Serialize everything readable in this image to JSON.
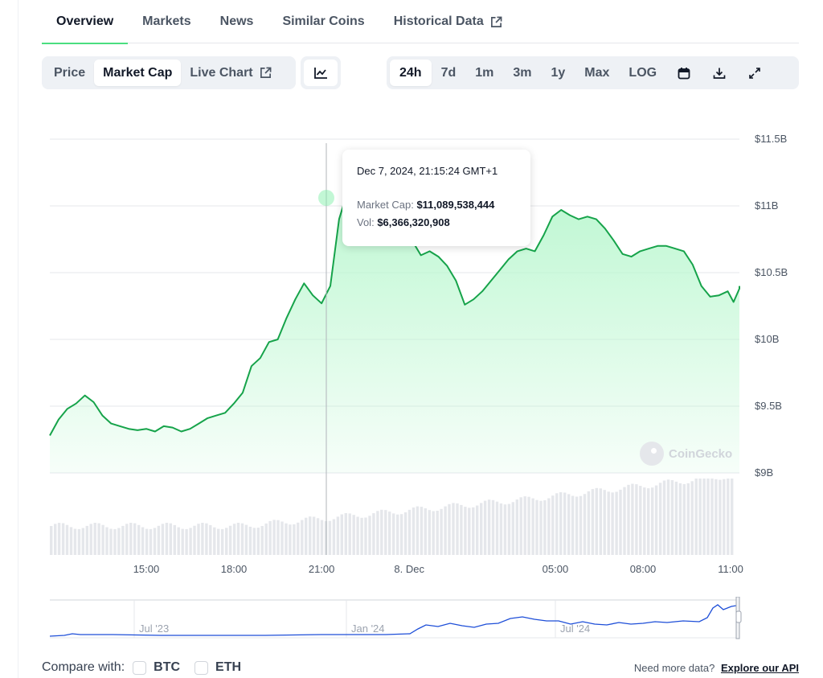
{
  "tabs": [
    {
      "label": "Overview",
      "active": true
    },
    {
      "label": "Markets",
      "active": false
    },
    {
      "label": "News",
      "active": false
    },
    {
      "label": "Similar Coins",
      "active": false
    },
    {
      "label": "Historical Data",
      "active": false
    }
  ],
  "chart_type_toggle": [
    {
      "label": "Price",
      "active": false
    },
    {
      "label": "Market Cap",
      "active": true
    },
    {
      "label": "Live Chart",
      "active": false
    }
  ],
  "chart_style_icon": "line-chart-icon",
  "ranges": [
    {
      "label": "24h",
      "active": true
    },
    {
      "label": "7d",
      "active": false
    },
    {
      "label": "1m",
      "active": false
    },
    {
      "label": "3m",
      "active": false
    },
    {
      "label": "1y",
      "active": false
    },
    {
      "label": "Max",
      "active": false
    },
    {
      "label": "LOG",
      "active": false
    }
  ],
  "tools": [
    "calendar-icon",
    "download-icon",
    "expand-icon"
  ],
  "chart_data": {
    "type": "area",
    "title": "",
    "y_ticks": [
      "$11.5B",
      "$11B",
      "$10.5B",
      "$10B",
      "$9.5B",
      "$9B"
    ],
    "y_tick_values": [
      11.5,
      11.0,
      10.5,
      10.0,
      9.5,
      9.0
    ],
    "x_ticks": [
      "15:00",
      "18:00",
      "21:00",
      "8. Dec",
      "05:00",
      "08:00",
      "11:00"
    ],
    "x_tick_hours": [
      15,
      18,
      21,
      24,
      29,
      32,
      35
    ],
    "x_range_hours": [
      11.7,
      35.3
    ],
    "ylim": [
      8.45,
      11.75
    ],
    "series": [
      {
        "values_billion_usd": [
          [
            11.7,
            9.28
          ],
          [
            12.0,
            9.4
          ],
          [
            12.3,
            9.48
          ],
          [
            12.6,
            9.52
          ],
          [
            12.9,
            9.58
          ],
          [
            13.2,
            9.53
          ],
          [
            13.5,
            9.43
          ],
          [
            13.8,
            9.37
          ],
          [
            14.1,
            9.35
          ],
          [
            14.4,
            9.33
          ],
          [
            14.7,
            9.32
          ],
          [
            15.0,
            9.33
          ],
          [
            15.3,
            9.31
          ],
          [
            15.6,
            9.35
          ],
          [
            15.9,
            9.34
          ],
          [
            16.2,
            9.31
          ],
          [
            16.5,
            9.33
          ],
          [
            16.8,
            9.37
          ],
          [
            17.1,
            9.41
          ],
          [
            17.4,
            9.43
          ],
          [
            17.7,
            9.45
          ],
          [
            18.0,
            9.52
          ],
          [
            18.3,
            9.6
          ],
          [
            18.6,
            9.8
          ],
          [
            18.9,
            9.86
          ],
          [
            19.2,
            9.98
          ],
          [
            19.5,
            10.0
          ],
          [
            19.8,
            10.16
          ],
          [
            20.1,
            10.3
          ],
          [
            20.4,
            10.42
          ],
          [
            20.7,
            10.33
          ],
          [
            21.0,
            10.27
          ],
          [
            21.3,
            10.4
          ],
          [
            21.6,
            10.9
          ],
          [
            21.85,
            11.08
          ],
          [
            22.1,
            11.02
          ],
          [
            22.35,
            10.88
          ],
          [
            22.6,
            10.87
          ],
          [
            22.9,
            10.86
          ],
          [
            23.2,
            10.84
          ],
          [
            23.5,
            10.85
          ],
          [
            23.8,
            10.82
          ],
          [
            24.1,
            10.74
          ],
          [
            24.4,
            10.63
          ],
          [
            24.7,
            10.66
          ],
          [
            25.0,
            10.62
          ],
          [
            25.3,
            10.55
          ],
          [
            25.6,
            10.44
          ],
          [
            25.9,
            10.26
          ],
          [
            26.2,
            10.3
          ],
          [
            26.5,
            10.36
          ],
          [
            26.8,
            10.44
          ],
          [
            27.1,
            10.52
          ],
          [
            27.4,
            10.6
          ],
          [
            27.7,
            10.66
          ],
          [
            28.0,
            10.68
          ],
          [
            28.3,
            10.66
          ],
          [
            28.6,
            10.78
          ],
          [
            28.9,
            10.92
          ],
          [
            29.2,
            10.97
          ],
          [
            29.5,
            10.93
          ],
          [
            29.8,
            10.9
          ],
          [
            30.1,
            10.92
          ],
          [
            30.4,
            10.9
          ],
          [
            30.7,
            10.83
          ],
          [
            31.0,
            10.74
          ],
          [
            31.3,
            10.64
          ],
          [
            31.6,
            10.62
          ],
          [
            31.9,
            10.66
          ],
          [
            32.2,
            10.68
          ],
          [
            32.5,
            10.7
          ],
          [
            32.8,
            10.7
          ],
          [
            33.1,
            10.68
          ],
          [
            33.4,
            10.66
          ],
          [
            33.7,
            10.56
          ],
          [
            34.0,
            10.4
          ],
          [
            34.3,
            10.32
          ],
          [
            34.6,
            10.33
          ],
          [
            34.9,
            10.36
          ],
          [
            35.1,
            10.28
          ],
          [
            35.3,
            10.38
          ],
          [
            35.3,
            10.4
          ]
        ]
      }
    ]
  },
  "tooltip": {
    "date": "Dec 7, 2024, 21:15:24 GMT+1",
    "cap_label": "Market Cap:",
    "cap_value": "$11,089,538,444",
    "vol_label": "Vol:",
    "vol_value": "$6,366,320,908"
  },
  "watermark": "CoinGecko",
  "navigator": {
    "labels": [
      "Jul '23",
      "Jan '24",
      "Jul '24"
    ]
  },
  "compare": {
    "label": "Compare with:",
    "options": [
      "BTC",
      "ETH"
    ]
  },
  "footer": {
    "need_more": "Need more data?",
    "api_link": "Explore our API"
  },
  "colors": {
    "line": "#16a34a",
    "area_top": "#bbf7d0",
    "volume": "#e5e7eb",
    "navigator_line": "#1d4ed8"
  }
}
